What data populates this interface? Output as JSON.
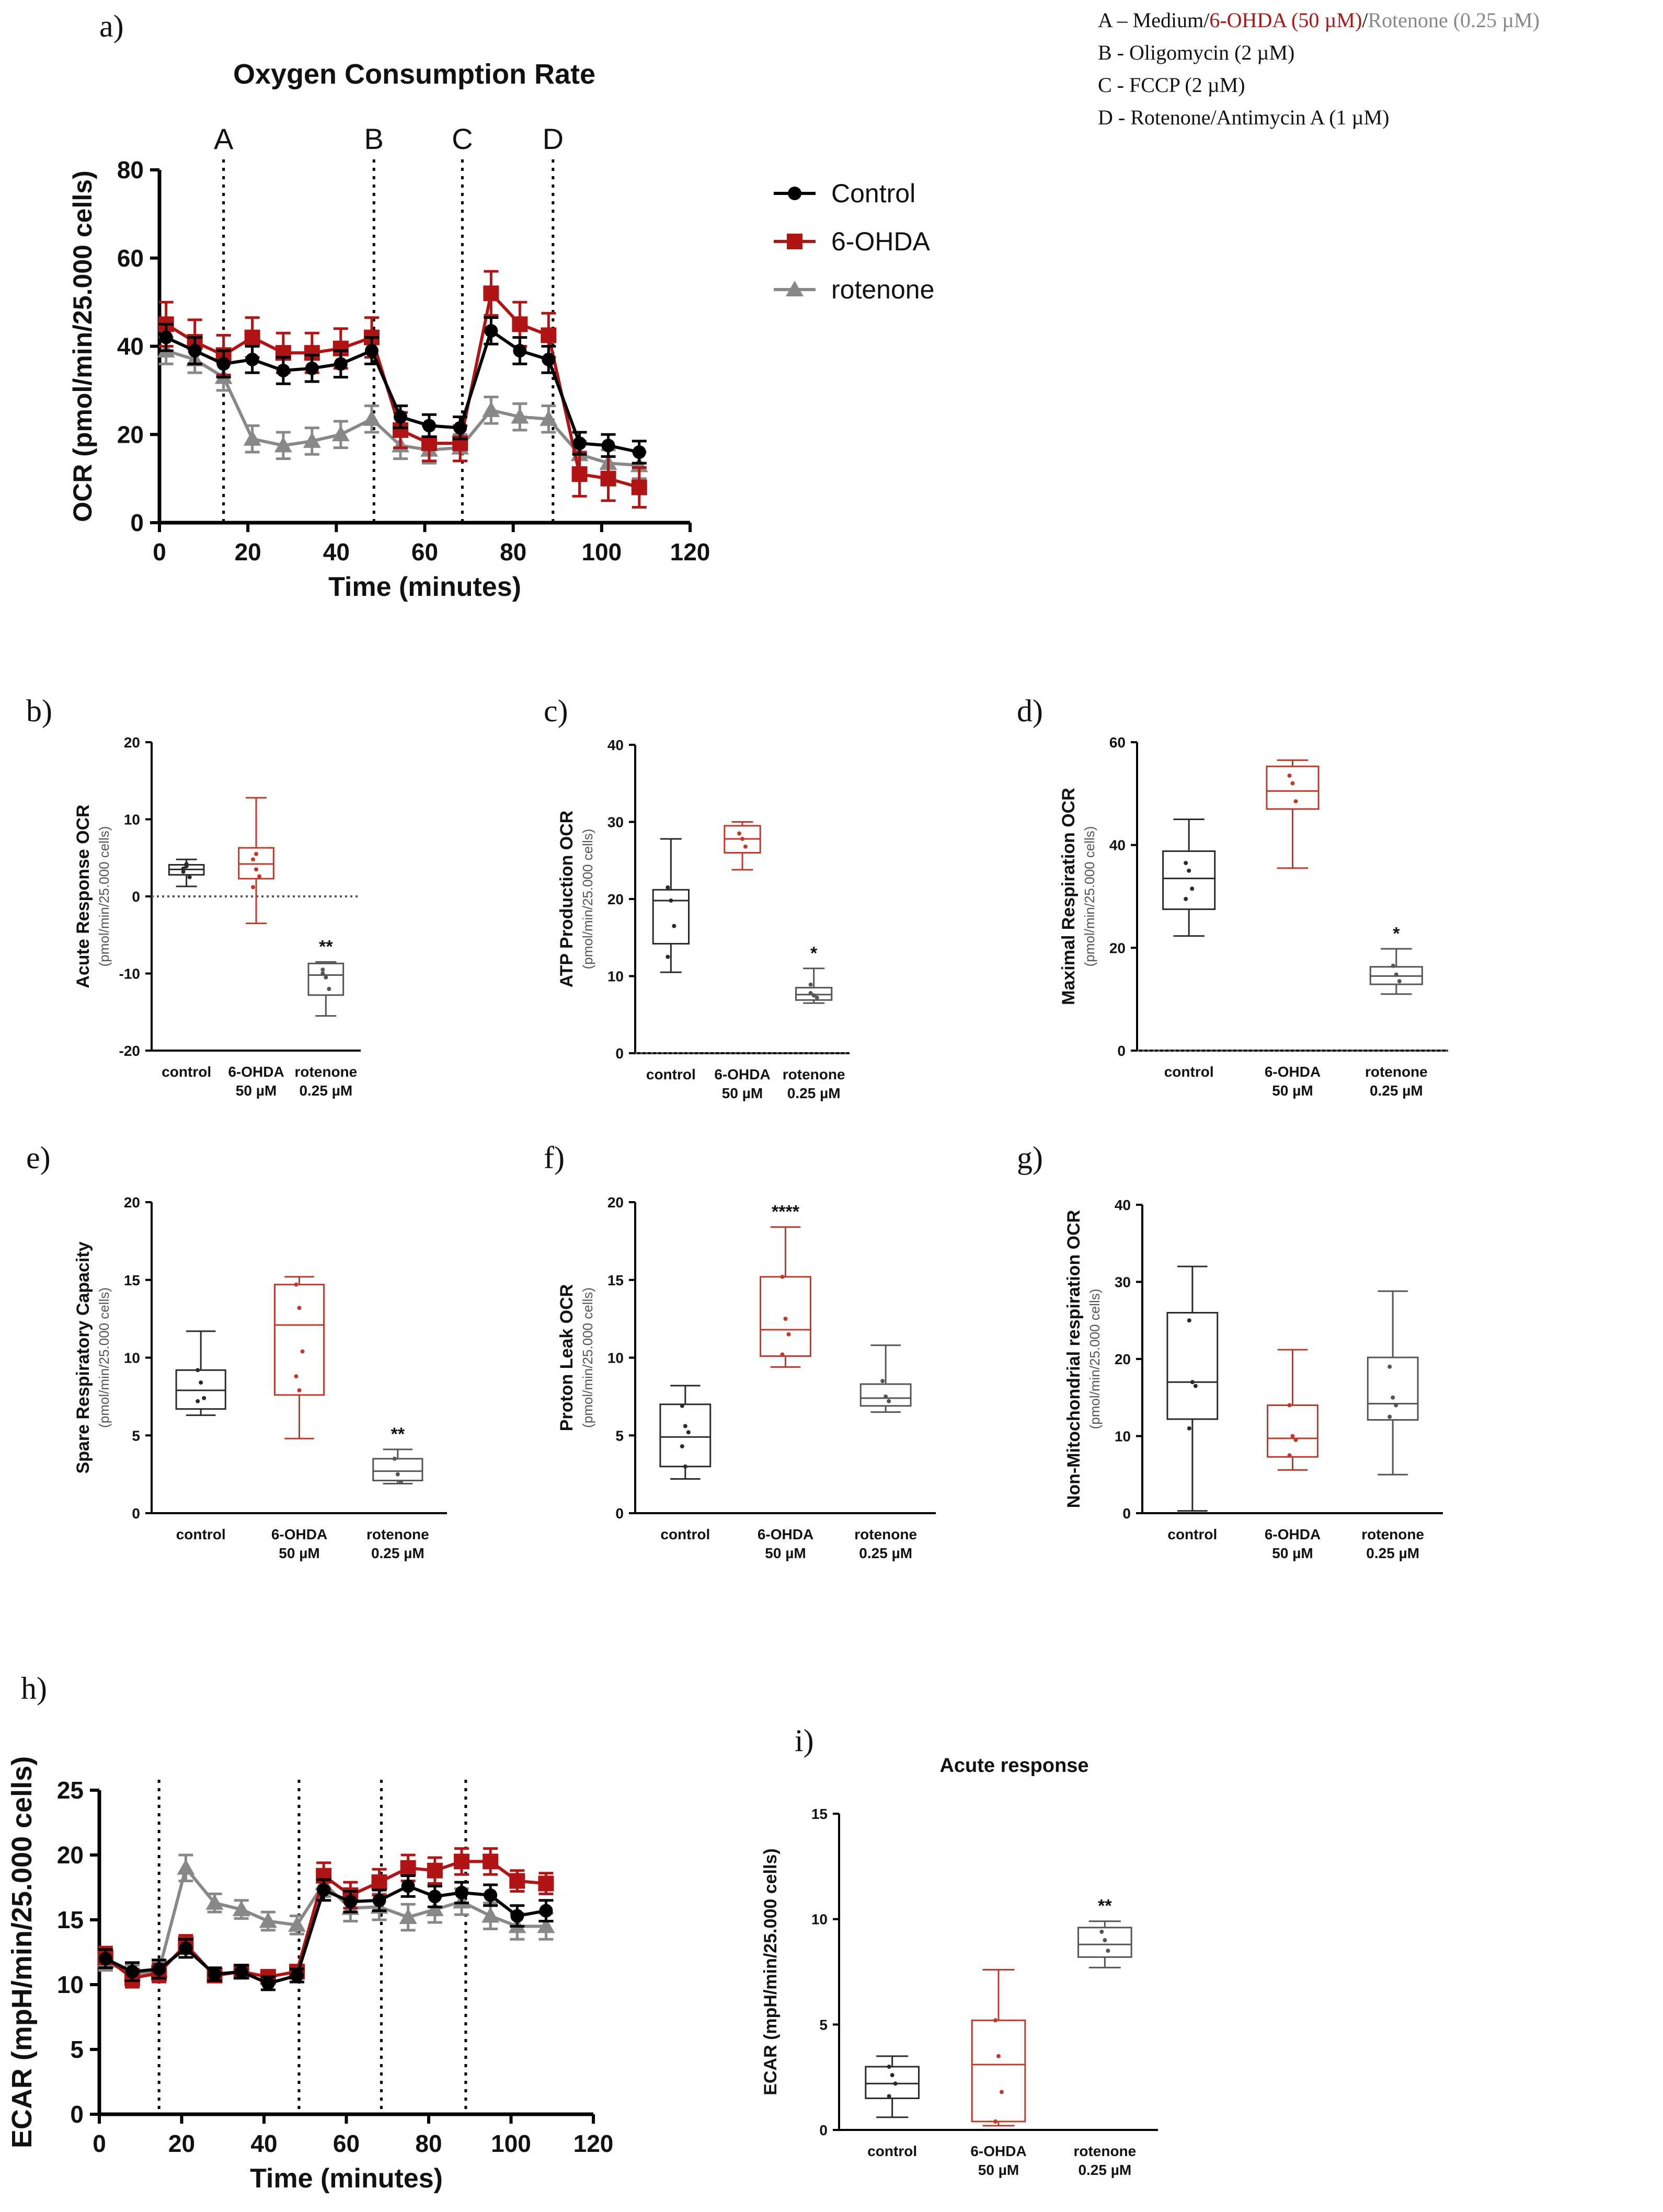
{
  "colors": {
    "control": "#000000",
    "ohda": "#b01414",
    "rotenone": "#888888",
    "box_control": "#2a2a2a",
    "box_ohda": "#c0392b",
    "box_rotenone": "#555555"
  },
  "legend_text": {
    "lineA_prefix": "A – Medium/",
    "lineA_red": "6-OHDA (50 µM)",
    "lineA_sep": "/",
    "lineA_gray": "Rotenone (0.25 µM)",
    "lineB": "B -  Oligomycin (2 µM)",
    "lineC": "C - FCCP (2 µM)",
    "lineD": "D -  Rotenone/Antimycin A (1 µM)"
  },
  "chart_data": [
    {
      "id": "a",
      "panel_label": "a)",
      "type": "line",
      "title": "Oxygen Consumption Rate",
      "xlabel": "Time (minutes)",
      "ylabel": "OCR (pmol/min/25.000 cells)",
      "xlim": [
        0,
        120
      ],
      "ylim": [
        0,
        80
      ],
      "xticks": [
        "0",
        "20",
        "40",
        "60",
        "80",
        "100",
        "120"
      ],
      "yticks": [
        "0",
        "20",
        "40",
        "60",
        "80"
      ],
      "injections": [
        {
          "label": "A",
          "x": 14.5
        },
        {
          "label": "B",
          "x": 48.5
        },
        {
          "label": "C",
          "x": 68.5
        },
        {
          "label": "D",
          "x": 89
        }
      ],
      "x": [
        1.5,
        8,
        14.5,
        21,
        28,
        34.5,
        41,
        48,
        54.5,
        61,
        68,
        75,
        81.5,
        88,
        95,
        101.5,
        108.5
      ],
      "series": [
        {
          "name": "Control",
          "marker": "circle",
          "values": [
            42,
            39,
            36,
            37,
            34.5,
            35,
            36,
            39,
            24,
            22,
            21.5,
            43.5,
            39,
            37,
            18,
            17.5,
            16
          ],
          "errors": [
            3,
            3,
            3,
            3,
            3,
            3,
            3,
            3,
            2.5,
            2.5,
            2.5,
            3,
            3,
            3,
            2.5,
            2.5,
            2.5
          ]
        },
        {
          "name": "6-OHDA",
          "marker": "square",
          "values": [
            45,
            41,
            38,
            42,
            38.5,
            38.5,
            39.5,
            42,
            21,
            18,
            18,
            52,
            45,
            42.5,
            11,
            10,
            8
          ],
          "errors": [
            5,
            5,
            4.5,
            4.5,
            4.5,
            4.5,
            4.5,
            4.5,
            4,
            4,
            4,
            5,
            5,
            5,
            5,
            5,
            4.5
          ]
        },
        {
          "name": "rotenone",
          "marker": "triangle",
          "values": [
            39,
            37,
            33,
            19,
            17.5,
            18.5,
            20,
            23.5,
            17.5,
            16.5,
            17,
            25.5,
            24,
            23.5,
            15.5,
            13.5,
            13
          ],
          "errors": [
            3,
            3,
            3,
            3,
            3,
            3,
            3,
            3,
            3,
            3,
            3,
            3,
            3,
            3,
            3,
            3,
            3
          ]
        }
      ]
    },
    {
      "id": "b",
      "panel_label": "b)",
      "type": "box",
      "ylabel": "Acute Response OCR",
      "ylabel2": "(pmol/min/25.000 cells)",
      "ylim": [
        -20,
        20
      ],
      "yticks": [
        "-20",
        "-10",
        "0",
        "10",
        "20"
      ],
      "zero_line": true,
      "categories": [
        {
          "line1": "control",
          "line2": ""
        },
        {
          "line1": "6-OHDA",
          "line2": "50 µM"
        },
        {
          "line1": "rotenone",
          "line2": "0.25 µM"
        }
      ],
      "boxes": [
        {
          "min": 1.3,
          "q1": 2.8,
          "median": 3.5,
          "q3": 4.1,
          "max": 4.8,
          "points": [
            3.2,
            3.9,
            2.5,
            3.6,
            4.2
          ],
          "sig": ""
        },
        {
          "min": -3.5,
          "q1": 2.3,
          "median": 4.2,
          "q3": 6.3,
          "max": 12.8,
          "points": [
            4.8,
            3.5,
            2.6,
            1.2,
            5.5
          ],
          "sig": ""
        },
        {
          "min": -15.5,
          "q1": -12.8,
          "median": -10.2,
          "q3": -8.7,
          "max": -8.5,
          "points": [
            -9.5,
            -10.5,
            -12,
            -10
          ],
          "sig": "**"
        }
      ]
    },
    {
      "id": "c",
      "panel_label": "c)",
      "type": "box",
      "ylabel": "ATP Production OCR",
      "ylabel2": "(pmol/min/25.000 cells)",
      "ylim": [
        0,
        40
      ],
      "yticks": [
        "0",
        "10",
        "20",
        "30",
        "40"
      ],
      "zero_line": true,
      "categories": [
        {
          "line1": "control",
          "line2": ""
        },
        {
          "line1": "6-OHDA",
          "line2": "50 µM"
        },
        {
          "line1": "rotenone",
          "line2": "0.25 µM"
        }
      ],
      "boxes": [
        {
          "min": 10.5,
          "q1": 14.2,
          "median": 19.8,
          "q3": 21.2,
          "max": 27.8,
          "points": [
            21.5,
            19.8,
            16.5,
            12.5
          ],
          "sig": ""
        },
        {
          "min": 23.8,
          "q1": 26,
          "median": 27.8,
          "q3": 29.5,
          "max": 30,
          "points": [
            28.5,
            27.8,
            26.8
          ],
          "sig": ""
        },
        {
          "min": 6.5,
          "q1": 6.9,
          "median": 7.6,
          "q3": 8.5,
          "max": 11,
          "points": [
            7.8,
            7.5,
            7.2,
            8.9
          ],
          "sig": "*"
        }
      ]
    },
    {
      "id": "d",
      "panel_label": "d)",
      "type": "box",
      "ylabel": "Maximal Respiration OCR",
      "ylabel2": "(pmol/min/25.000 cells)",
      "ylim": [
        0,
        60
      ],
      "yticks": [
        "0",
        "20",
        "40",
        "60"
      ],
      "zero_line": true,
      "categories": [
        {
          "line1": "control",
          "line2": ""
        },
        {
          "line1": "6-OHDA",
          "line2": "50 µM"
        },
        {
          "line1": "rotenone",
          "line2": "0.25 µM"
        }
      ],
      "boxes": [
        {
          "min": 22.3,
          "q1": 27.5,
          "median": 33.5,
          "q3": 38.8,
          "max": 45,
          "points": [
            36.5,
            35,
            31.5,
            29.5
          ],
          "sig": ""
        },
        {
          "min": 35.5,
          "q1": 47,
          "median": 50.5,
          "q3": 55.3,
          "max": 56.5,
          "points": [
            53.5,
            52,
            48.5
          ],
          "sig": ""
        },
        {
          "min": 11,
          "q1": 12.9,
          "median": 14.5,
          "q3": 16.3,
          "max": 19.8,
          "points": [
            16.5,
            14.8,
            13.5
          ],
          "sig": "*"
        }
      ]
    },
    {
      "id": "e",
      "panel_label": "e)",
      "type": "box",
      "ylabel": "Spare Respiratory Capacity",
      "ylabel2": "(pmol/min/25.000 cells)",
      "ylim": [
        0,
        20
      ],
      "yticks": [
        "0",
        "5",
        "10",
        "15",
        "20"
      ],
      "zero_line": false,
      "categories": [
        {
          "line1": "control",
          "line2": ""
        },
        {
          "line1": "6-OHDA",
          "line2": "50 µM"
        },
        {
          "line1": "rotenone",
          "line2": "0.25 µM"
        }
      ],
      "boxes": [
        {
          "min": 6.3,
          "q1": 6.7,
          "median": 7.9,
          "q3": 9.2,
          "max": 11.7,
          "points": [
            9.2,
            8.4,
            7.4,
            7.2
          ],
          "sig": ""
        },
        {
          "min": 4.8,
          "q1": 7.6,
          "median": 12.1,
          "q3": 14.7,
          "max": 15.2,
          "points": [
            14.7,
            13.2,
            10.4,
            8.8,
            7.9
          ],
          "sig": ""
        },
        {
          "min": 1.9,
          "q1": 2.1,
          "median": 2.7,
          "q3": 3.5,
          "max": 4.1,
          "points": [
            3.5,
            2.5,
            2.0
          ],
          "sig": "**"
        }
      ]
    },
    {
      "id": "f",
      "panel_label": "f)",
      "type": "box",
      "ylabel": "Proton Leak OCR",
      "ylabel2": "(pmol/min/25.000 cells)",
      "ylim": [
        0,
        20
      ],
      "yticks": [
        "0",
        "5",
        "10",
        "15",
        "20"
      ],
      "zero_line": false,
      "categories": [
        {
          "line1": "control",
          "line2": ""
        },
        {
          "line1": "6-OHDA",
          "line2": "50 µM"
        },
        {
          "line1": "rotenone",
          "line2": "0.25 µM"
        }
      ],
      "boxes": [
        {
          "min": 2.2,
          "q1": 3.0,
          "median": 4.9,
          "q3": 7.0,
          "max": 8.2,
          "points": [
            6.9,
            5.6,
            5.2,
            4.3,
            3.0
          ],
          "sig": ""
        },
        {
          "min": 9.4,
          "q1": 10.1,
          "median": 11.8,
          "q3": 15.2,
          "max": 18.4,
          "points": [
            15.2,
            12.5,
            11.5,
            10.2
          ],
          "sig": "****"
        },
        {
          "min": 6.5,
          "q1": 6.9,
          "median": 7.4,
          "q3": 8.3,
          "max": 10.8,
          "points": [
            8.5,
            7.5,
            7.2
          ],
          "sig": ""
        }
      ]
    },
    {
      "id": "g",
      "panel_label": "g)",
      "type": "box",
      "ylabel": "Non-Mitochondrial respiration OCR",
      "ylabel2": "(pmol/min/25.000 cells)",
      "ylim": [
        0,
        40
      ],
      "yticks": [
        "0",
        "10",
        "20",
        "30",
        "40"
      ],
      "zero_line": false,
      "categories": [
        {
          "line1": "control",
          "line2": ""
        },
        {
          "line1": "6-OHDA",
          "line2": "50 µM"
        },
        {
          "line1": "rotenone",
          "line2": "0.25 µM"
        }
      ],
      "boxes": [
        {
          "min": 0.3,
          "q1": 12.2,
          "median": 17,
          "q3": 26,
          "max": 32,
          "points": [
            25,
            17,
            16.5,
            11
          ],
          "sig": ""
        },
        {
          "min": 5.6,
          "q1": 7.3,
          "median": 9.7,
          "q3": 14,
          "max": 21.2,
          "points": [
            14,
            10,
            9.5,
            7.5
          ],
          "sig": ""
        },
        {
          "min": 5,
          "q1": 12.1,
          "median": 14.2,
          "q3": 20.2,
          "max": 28.8,
          "points": [
            19,
            15,
            14,
            12.5
          ],
          "sig": ""
        }
      ]
    },
    {
      "id": "h",
      "panel_label": "h)",
      "type": "line",
      "title": "",
      "xlabel": "Time (minutes)",
      "ylabel": "ECAR (mpH/min/25.000 cells)",
      "xlim": [
        0,
        120
      ],
      "ylim": [
        0,
        25
      ],
      "xticks": [
        "0",
        "20",
        "40",
        "60",
        "80",
        "100",
        "120"
      ],
      "yticks": [
        "0",
        "5",
        "10",
        "15",
        "20",
        "25"
      ],
      "injections": [
        {
          "label": "",
          "x": 14.5
        },
        {
          "label": "",
          "x": 48.5
        },
        {
          "label": "",
          "x": 68.5
        },
        {
          "label": "",
          "x": 89
        }
      ],
      "x": [
        1.5,
        8,
        14.5,
        21,
        28,
        34.5,
        41,
        48,
        54.5,
        61,
        68,
        75,
        81.5,
        88,
        95,
        101.5,
        108.5
      ],
      "series": [
        {
          "name": "Control",
          "marker": "circle",
          "values": [
            12,
            11,
            11.2,
            12.8,
            10.8,
            11,
            10.1,
            10.7,
            17.3,
            16.4,
            16.5,
            17.6,
            16.8,
            17.1,
            16.9,
            15.3,
            15.7
          ],
          "errors": [
            0.7,
            0.7,
            0.7,
            0.7,
            0.5,
            0.5,
            0.5,
            0.5,
            0.8,
            0.8,
            0.8,
            0.8,
            0.8,
            0.8,
            0.8,
            0.8,
            0.8
          ]
        },
        {
          "name": "6-OHDA",
          "marker": "square",
          "values": [
            12.1,
            10.5,
            10.9,
            13.1,
            10.7,
            11,
            10.6,
            11,
            18.4,
            16.9,
            17.9,
            19,
            18.8,
            19.5,
            19.5,
            18,
            17.8
          ],
          "errors": [
            0.8,
            0.7,
            0.7,
            0.7,
            0.5,
            0.5,
            0.5,
            0.5,
            1,
            1,
            1,
            1,
            1,
            1,
            1,
            0.8,
            0.8
          ]
        },
        {
          "name": "rotenone",
          "marker": "triangle",
          "values": [
            11.8,
            10.8,
            11.1,
            19,
            16.3,
            15.8,
            14.9,
            14.6,
            17.8,
            15.9,
            16,
            15.2,
            15.8,
            16.4,
            15.3,
            14.5,
            14.5
          ],
          "errors": [
            0.7,
            0.7,
            0.7,
            1,
            0.7,
            0.7,
            0.7,
            0.7,
            1,
            1,
            1,
            1,
            1,
            1,
            1,
            1,
            1
          ]
        }
      ]
    },
    {
      "id": "i",
      "panel_label": "i)",
      "type": "box",
      "title": "Acute response",
      "ylabel": "ECAR (mpH/min/25.000 cells)",
      "ylabel2": "",
      "ylim": [
        0,
        15
      ],
      "yticks": [
        "0",
        "5",
        "10",
        "15"
      ],
      "zero_line": false,
      "categories": [
        {
          "line1": "control",
          "line2": ""
        },
        {
          "line1": "6-OHDA",
          "line2": "50 µM"
        },
        {
          "line1": "rotenone",
          "line2": "0.25 µM"
        }
      ],
      "boxes": [
        {
          "min": 0.6,
          "q1": 1.5,
          "median": 2.2,
          "q3": 3.0,
          "max": 3.5,
          "points": [
            3.0,
            2.6,
            2.2,
            1.6
          ],
          "sig": ""
        },
        {
          "min": 0.2,
          "q1": 0.4,
          "median": 3.1,
          "q3": 5.2,
          "max": 7.6,
          "points": [
            5.2,
            3.5,
            1.8,
            0.4
          ],
          "sig": ""
        },
        {
          "min": 7.7,
          "q1": 8.2,
          "median": 8.8,
          "q3": 9.6,
          "max": 9.9,
          "points": [
            9.4,
            9.0,
            8.5
          ],
          "sig": "**"
        }
      ]
    }
  ]
}
